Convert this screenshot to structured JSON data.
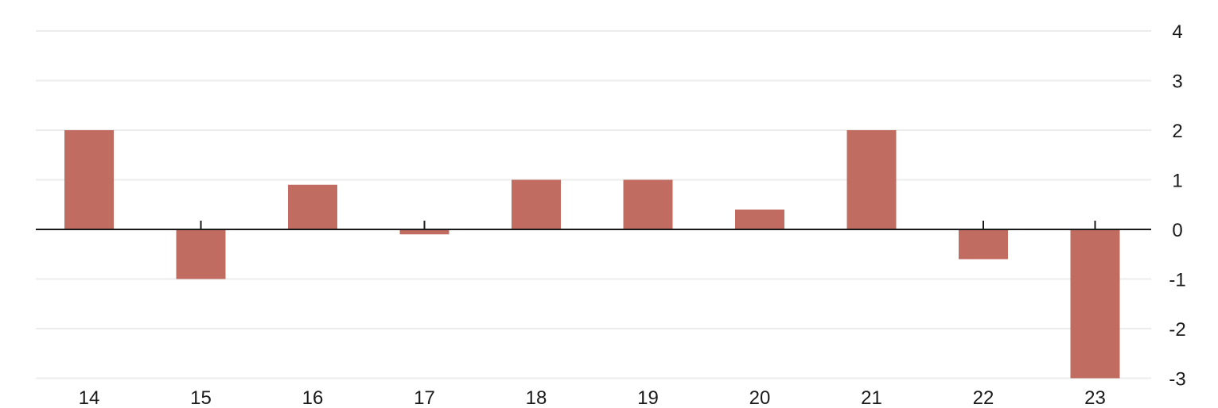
{
  "chart_data": {
    "type": "bar",
    "categories": [
      "14",
      "15",
      "16",
      "17",
      "18",
      "19",
      "20",
      "21",
      "22",
      "23"
    ],
    "values": [
      2.0,
      -1.0,
      0.9,
      -0.1,
      1.0,
      1.0,
      0.4,
      2.0,
      -0.6,
      -3.0
    ],
    "ylim": [
      -3,
      4
    ],
    "yticks": [
      "4",
      "3",
      "2",
      "1",
      "0",
      "-1",
      "-2",
      "-3"
    ],
    "y_axis_side": "right",
    "grid": true,
    "title": "",
    "xlabel": "",
    "ylabel": "",
    "bar_color": "#c06c60"
  }
}
